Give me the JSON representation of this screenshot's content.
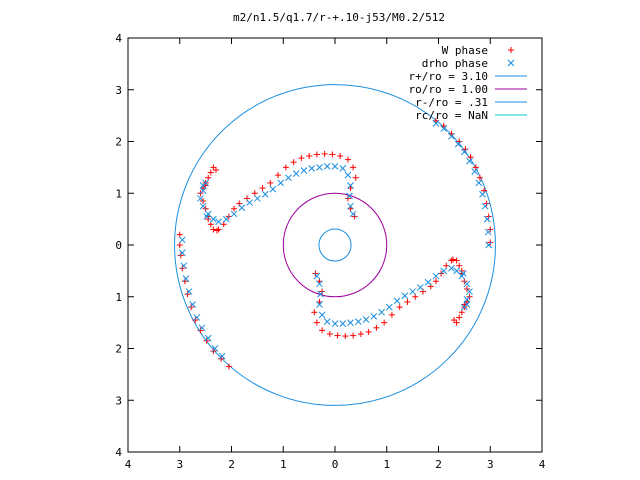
{
  "chart_data": {
    "type": "scatter",
    "title": "m2/n1.5/q1.7/r-+.10-j53/M0.2/512",
    "xlabel": "",
    "ylabel": "",
    "xlim": [
      -4,
      4
    ],
    "ylim": [
      -4,
      4
    ],
    "grid": false,
    "legend_position": "top-right",
    "x_ticks": [
      -4,
      -3,
      -2,
      -1,
      0,
      1,
      2,
      3,
      4
    ],
    "y_ticks": [
      -4,
      -3,
      -2,
      -1,
      0,
      1,
      2,
      3,
      4
    ],
    "x_tick_labels": [
      "4",
      "3",
      "2",
      "1",
      "0",
      "1",
      "2",
      "3",
      "4"
    ],
    "y_tick_labels": [
      "4",
      "3",
      "2",
      "1",
      "0",
      "1",
      "2",
      "3",
      "4"
    ],
    "series": [
      {
        "name": "W phase",
        "marker": "plus",
        "color": "#ff0000",
        "points": [
          [
            -2.35,
            1.5
          ],
          [
            -2.4,
            1.4
          ],
          [
            -2.45,
            1.3
          ],
          [
            -2.5,
            1.2
          ],
          [
            -2.55,
            1.1
          ],
          [
            -2.6,
            1.0
          ],
          [
            -2.55,
            0.85
          ],
          [
            -2.5,
            0.7
          ],
          [
            -2.45,
            0.55
          ],
          [
            -2.4,
            0.4
          ],
          [
            -2.35,
            0.3
          ],
          [
            -2.25,
            0.3
          ],
          [
            -2.15,
            0.4
          ],
          [
            -2.05,
            0.55
          ],
          [
            -1.95,
            0.7
          ],
          [
            -1.85,
            0.8
          ],
          [
            -1.7,
            0.9
          ],
          [
            -1.55,
            1.0
          ],
          [
            -1.4,
            1.1
          ],
          [
            -1.25,
            1.2
          ],
          [
            -1.1,
            1.35
          ],
          [
            -0.95,
            1.5
          ],
          [
            -0.8,
            1.6
          ],
          [
            -0.65,
            1.68
          ],
          [
            -0.5,
            1.72
          ],
          [
            -0.35,
            1.75
          ],
          [
            -0.2,
            1.76
          ],
          [
            -0.05,
            1.75
          ],
          [
            0.1,
            1.72
          ],
          [
            0.25,
            1.65
          ],
          [
            0.35,
            1.5
          ],
          [
            0.4,
            1.3
          ],
          [
            0.3,
            1.1
          ],
          [
            0.25,
            0.9
          ],
          [
            0.3,
            0.7
          ],
          [
            0.38,
            0.55
          ],
          [
            -2.3,
            1.45
          ],
          [
            -2.5,
            1.15
          ],
          [
            -2.45,
            0.5
          ],
          [
            -2.28,
            0.28
          ],
          [
            2.35,
            -1.5
          ],
          [
            2.4,
            -1.4
          ],
          [
            2.45,
            -1.3
          ],
          [
            2.5,
            -1.2
          ],
          [
            2.55,
            -1.1
          ],
          [
            2.6,
            -1.0
          ],
          [
            2.55,
            -0.85
          ],
          [
            2.5,
            -0.7
          ],
          [
            2.45,
            -0.55
          ],
          [
            2.4,
            -0.4
          ],
          [
            2.35,
            -0.3
          ],
          [
            2.25,
            -0.3
          ],
          [
            2.15,
            -0.4
          ],
          [
            2.05,
            -0.55
          ],
          [
            1.95,
            -0.7
          ],
          [
            1.85,
            -0.8
          ],
          [
            1.7,
            -0.9
          ],
          [
            1.55,
            -1.0
          ],
          [
            1.4,
            -1.1
          ],
          [
            1.25,
            -1.2
          ],
          [
            1.1,
            -1.35
          ],
          [
            0.95,
            -1.5
          ],
          [
            0.8,
            -1.6
          ],
          [
            0.65,
            -1.68
          ],
          [
            0.5,
            -1.72
          ],
          [
            0.35,
            -1.75
          ],
          [
            0.2,
            -1.76
          ],
          [
            0.05,
            -1.75
          ],
          [
            -0.1,
            -1.72
          ],
          [
            -0.25,
            -1.65
          ],
          [
            -0.35,
            -1.5
          ],
          [
            -0.4,
            -1.3
          ],
          [
            -0.3,
            -1.1
          ],
          [
            -0.25,
            -0.9
          ],
          [
            -0.3,
            -0.7
          ],
          [
            -0.38,
            -0.55
          ],
          [
            2.3,
            -1.45
          ],
          [
            2.5,
            -1.15
          ],
          [
            2.45,
            -0.5
          ],
          [
            2.28,
            -0.28
          ],
          [
            -3.0,
            0.2
          ],
          [
            -3.0,
            0.0
          ],
          [
            -2.98,
            -0.2
          ],
          [
            -2.95,
            -0.45
          ],
          [
            -2.9,
            -0.7
          ],
          [
            -2.85,
            -0.95
          ],
          [
            -2.78,
            -1.2
          ],
          [
            -2.7,
            -1.45
          ],
          [
            -2.6,
            -1.65
          ],
          [
            -2.48,
            -1.85
          ],
          [
            -2.35,
            -2.05
          ],
          [
            -2.2,
            -2.2
          ],
          [
            -2.05,
            -2.35
          ],
          [
            1.95,
            2.4
          ],
          [
            2.1,
            2.3
          ],
          [
            2.25,
            2.15
          ],
          [
            2.4,
            2.0
          ],
          [
            2.52,
            1.85
          ],
          [
            2.62,
            1.7
          ],
          [
            2.72,
            1.5
          ],
          [
            2.8,
            1.3
          ],
          [
            2.88,
            1.05
          ],
          [
            2.93,
            0.8
          ],
          [
            2.97,
            0.55
          ],
          [
            3.0,
            0.3
          ],
          [
            3.0,
            0.05
          ]
        ]
      },
      {
        "name": "drho phase",
        "marker": "cross",
        "color": "#1a8ee0",
        "points": [
          [
            -2.5,
            1.2
          ],
          [
            -2.55,
            1.05
          ],
          [
            -2.6,
            0.9
          ],
          [
            -2.55,
            0.75
          ],
          [
            -2.45,
            0.6
          ],
          [
            -2.35,
            0.5
          ],
          [
            -2.25,
            0.45
          ],
          [
            -2.1,
            0.5
          ],
          [
            -1.95,
            0.6
          ],
          [
            -1.8,
            0.72
          ],
          [
            -1.65,
            0.82
          ],
          [
            -1.5,
            0.9
          ],
          [
            -1.35,
            0.98
          ],
          [
            -1.2,
            1.08
          ],
          [
            -1.05,
            1.2
          ],
          [
            -0.9,
            1.3
          ],
          [
            -0.75,
            1.38
          ],
          [
            -0.6,
            1.44
          ],
          [
            -0.45,
            1.48
          ],
          [
            -0.3,
            1.5
          ],
          [
            -0.15,
            1.52
          ],
          [
            0.0,
            1.52
          ],
          [
            0.15,
            1.48
          ],
          [
            0.25,
            1.35
          ],
          [
            0.3,
            1.15
          ],
          [
            0.28,
            0.95
          ],
          [
            0.3,
            0.75
          ],
          [
            0.35,
            0.6
          ],
          [
            -2.55,
            1.15
          ],
          [
            -2.48,
            0.55
          ],
          [
            2.5,
            -1.2
          ],
          [
            2.55,
            -1.05
          ],
          [
            2.6,
            -0.9
          ],
          [
            2.55,
            -0.75
          ],
          [
            2.45,
            -0.6
          ],
          [
            2.35,
            -0.5
          ],
          [
            2.25,
            -0.45
          ],
          [
            2.1,
            -0.5
          ],
          [
            1.95,
            -0.6
          ],
          [
            1.8,
            -0.72
          ],
          [
            1.65,
            -0.82
          ],
          [
            1.5,
            -0.9
          ],
          [
            1.35,
            -0.98
          ],
          [
            1.2,
            -1.08
          ],
          [
            1.05,
            -1.2
          ],
          [
            0.9,
            -1.3
          ],
          [
            0.75,
            -1.38
          ],
          [
            0.6,
            -1.44
          ],
          [
            0.45,
            -1.48
          ],
          [
            0.3,
            -1.5
          ],
          [
            0.15,
            -1.52
          ],
          [
            0.0,
            -1.52
          ],
          [
            -0.15,
            -1.48
          ],
          [
            -0.25,
            -1.35
          ],
          [
            -0.3,
            -1.15
          ],
          [
            -0.28,
            -0.95
          ],
          [
            -0.3,
            -0.75
          ],
          [
            -0.35,
            -0.6
          ],
          [
            2.55,
            -1.15
          ],
          [
            2.48,
            -0.55
          ],
          [
            -2.95,
            0.1
          ],
          [
            -2.95,
            -0.15
          ],
          [
            -2.92,
            -0.4
          ],
          [
            -2.88,
            -0.65
          ],
          [
            -2.82,
            -0.9
          ],
          [
            -2.75,
            -1.15
          ],
          [
            -2.67,
            -1.4
          ],
          [
            -2.57,
            -1.6
          ],
          [
            -2.45,
            -1.8
          ],
          [
            -2.32,
            -2.0
          ],
          [
            -2.18,
            -2.15
          ],
          [
            1.95,
            2.35
          ],
          [
            2.1,
            2.25
          ],
          [
            2.25,
            2.1
          ],
          [
            2.38,
            1.95
          ],
          [
            2.5,
            1.8
          ],
          [
            2.6,
            1.62
          ],
          [
            2.7,
            1.42
          ],
          [
            2.78,
            1.2
          ],
          [
            2.85,
            0.98
          ],
          [
            2.9,
            0.75
          ],
          [
            2.94,
            0.5
          ],
          [
            2.96,
            0.25
          ],
          [
            2.97,
            0.0
          ]
        ]
      }
    ],
    "circles": [
      {
        "name": "r+/ro = 3.10",
        "radius": 3.1,
        "color": "#1a8ee0"
      },
      {
        "name": "ro/ro = 1.00",
        "radius": 1.0,
        "color": "#9b009b"
      },
      {
        "name": "r-/ro = .31",
        "radius": 0.31,
        "color": "#1a8ee0"
      },
      {
        "name": "rc/ro = NaN",
        "radius": null,
        "color": "#00c8d0"
      }
    ]
  }
}
